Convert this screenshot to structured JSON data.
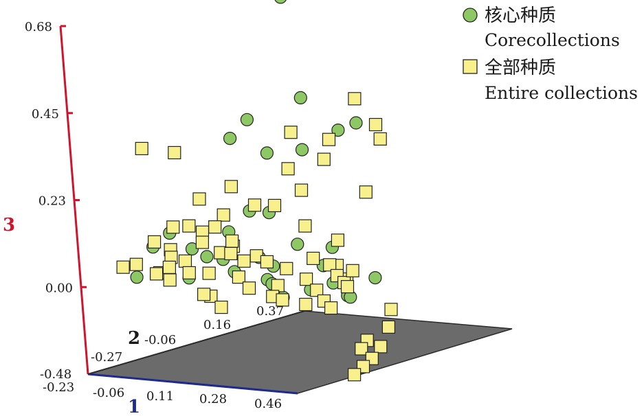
{
  "chart_data": {
    "type": "scatter",
    "subtype": "3d-scatter",
    "title": "",
    "axes": {
      "x": {
        "label": "1",
        "color": "#1f2a8c",
        "ticks": [
          "-0.23",
          "-0.06",
          "0.11",
          "0.28",
          "0.46"
        ]
      },
      "y": {
        "label": "2",
        "color": "#1a1a1a",
        "ticks": [
          "-0.27",
          "-0.06",
          "0.16",
          "0.37"
        ]
      },
      "z": {
        "label": "3",
        "color": "#d0142c",
        "ticks": [
          "-0.23",
          "0.00",
          "0.23",
          "0.45",
          "0.68"
        ]
      }
    },
    "corner_labels": [
      "-0.48",
      "-0.23"
    ],
    "floor_plane_color": "#6b6b6b",
    "legend": {
      "position": "top-right",
      "items": [
        {
          "marker": "circle",
          "label_cn": "核心种质",
          "label_en": "Corecollections",
          "color": "#8ec864"
        },
        {
          "marker": "square",
          "label_cn": "全部种质",
          "label_en": "Entire collections",
          "color": "#f7f08c"
        }
      ]
    },
    "series": [
      {
        "name": "核心种质 Corecollections",
        "marker": "circle",
        "color": "#8ec864",
        "points": [
          [
            0.14,
            0.05,
            0.7
          ],
          [
            0.18,
            0.05,
            0.44
          ],
          [
            0.1,
            -0.04,
            0.4
          ],
          [
            0.05,
            -0.05,
            0.35
          ],
          [
            0.3,
            0.1,
            0.37
          ],
          [
            0.25,
            0.09,
            0.35
          ],
          [
            0.1,
            0.01,
            0.3
          ],
          [
            0.16,
            0.06,
            0.3
          ],
          [
            -0.05,
            -0.21,
            0.1
          ],
          [
            -0.06,
            -0.15,
            0.12
          ],
          [
            -0.1,
            -0.22,
            0.02
          ],
          [
            -0.07,
            -0.08,
            0.06
          ],
          [
            0.05,
            -0.01,
            0.15
          ],
          [
            0.08,
            0.02,
            0.14
          ],
          [
            0.0,
            -0.1,
            0.05
          ],
          [
            0.03,
            -0.05,
            0.0
          ],
          [
            0.12,
            0.06,
            0.05
          ],
          [
            0.03,
            -0.08,
            0.04
          ],
          [
            0.08,
            0.0,
            -0.03
          ],
          [
            0.08,
            0.02,
            0.0
          ],
          [
            -0.03,
            -0.13,
            0.0
          ],
          [
            0.2,
            0.06,
            0.0
          ],
          [
            0.24,
            0.05,
            -0.04
          ],
          [
            0.25,
            0.08,
            -0.08
          ],
          [
            0.27,
            0.07,
            -0.08
          ],
          [
            0.06,
            0.03,
            -0.05
          ],
          [
            0.07,
            0.05,
            -0.09
          ],
          [
            0.01,
            -0.04,
            0.1
          ],
          [
            0.07,
            -0.01,
            0.03
          ],
          [
            0.2,
            0.09,
            0.04
          ],
          [
            0.3,
            0.12,
            -0.04
          ],
          [
            0.14,
            0.07,
            -0.07
          ]
        ]
      },
      {
        "name": "全部种质 Entire collections",
        "marker": "square",
        "color": "#f7f08c",
        "points": [
          [
            -0.05,
            -0.22,
            0.36
          ],
          [
            0.0,
            -0.17,
            0.34
          ],
          [
            0.29,
            0.11,
            0.43
          ],
          [
            0.24,
            0.07,
            0.33
          ],
          [
            0.33,
            0.13,
            0.36
          ],
          [
            0.15,
            0.04,
            0.35
          ],
          [
            0.23,
            0.06,
            0.28
          ],
          [
            0.12,
            0.05,
            0.25
          ],
          [
            0.33,
            0.14,
            0.32
          ],
          [
            0.17,
            0.04,
            0.2
          ],
          [
            0.03,
            -0.04,
            0.22
          ],
          [
            -0.01,
            -0.1,
            0.2
          ],
          [
            -0.04,
            -0.11,
            0.13
          ],
          [
            0.1,
            0.02,
            0.16
          ],
          [
            0.28,
            0.13,
            0.18
          ],
          [
            0.15,
            0.06,
            0.1
          ],
          [
            0.22,
            0.09,
            0.06
          ],
          [
            0.2,
            0.1,
            -0.01
          ],
          [
            0.24,
            0.09,
            -0.04
          ],
          [
            0.02,
            -0.06,
            0.15
          ],
          [
            -0.05,
            -0.16,
            0.08
          ],
          [
            -0.12,
            -0.24,
            0.05
          ],
          [
            -0.11,
            -0.21,
            0.05
          ],
          [
            -0.09,
            -0.17,
            0.1
          ],
          [
            -0.07,
            -0.13,
            0.13
          ],
          [
            -0.08,
            -0.17,
            0.02
          ],
          [
            -0.05,
            -0.16,
            0.06
          ],
          [
            -0.02,
            -0.09,
            0.11
          ],
          [
            0.0,
            -0.07,
            0.12
          ],
          [
            0.0,
            -0.11,
            0.09
          ],
          [
            0.0,
            -0.06,
            0.05
          ],
          [
            0.01,
            -0.03,
            0.06
          ],
          [
            -0.05,
            -0.12,
            0.04
          ],
          [
            -0.07,
            -0.15,
            0.03
          ],
          [
            -0.08,
            -0.18,
            0.02
          ],
          [
            -0.06,
            -0.16,
            0.0
          ],
          [
            -0.04,
            -0.12,
            0.01
          ],
          [
            -0.02,
            -0.08,
            0.0
          ],
          [
            0.0,
            -0.03,
            0.04
          ],
          [
            0.03,
            -0.02,
            0.02
          ],
          [
            0.05,
            0.0,
            0.03
          ],
          [
            0.06,
            0.02,
            0.01
          ],
          [
            0.02,
            -0.03,
            -0.02
          ],
          [
            0.04,
            -0.02,
            -0.05
          ],
          [
            -0.02,
            -0.08,
            -0.06
          ],
          [
            0.09,
            0.02,
            -0.05
          ],
          [
            0.07,
            0.02,
            -0.08
          ],
          [
            0.1,
            0.04,
            -0.01
          ],
          [
            0.14,
            0.06,
            -0.04
          ],
          [
            0.16,
            0.07,
            -0.07
          ],
          [
            0.17,
            0.08,
            -0.1
          ],
          [
            0.18,
            0.09,
            -0.12
          ],
          [
            0.12,
            0.07,
            -0.11
          ],
          [
            0.18,
            0.05,
            0.02
          ],
          [
            0.21,
            0.07,
            0.0
          ],
          [
            0.22,
            0.08,
            -0.03
          ],
          [
            0.23,
            0.09,
            -0.05
          ],
          [
            0.25,
            0.1,
            -0.02
          ],
          [
            0.24,
            0.09,
            -0.06
          ],
          [
            0.31,
            0.15,
            -0.13
          ],
          [
            0.32,
            0.13,
            -0.17
          ],
          [
            0.28,
            0.1,
            -0.2
          ],
          [
            0.3,
            0.12,
            -0.22
          ],
          [
            0.27,
            0.09,
            -0.22
          ],
          [
            0.28,
            0.11,
            -0.25
          ],
          [
            0.26,
            0.1,
            -0.27
          ],
          [
            0.24,
            0.09,
            -0.29
          ],
          [
            0.08,
            -0.02,
            0.17
          ],
          [
            0.03,
            -0.05,
            0.08
          ],
          [
            -0.02,
            -0.1,
            -0.05
          ],
          [
            0.0,
            -0.07,
            -0.09
          ],
          [
            0.09,
            0.03,
            -0.09
          ]
        ]
      }
    ]
  }
}
